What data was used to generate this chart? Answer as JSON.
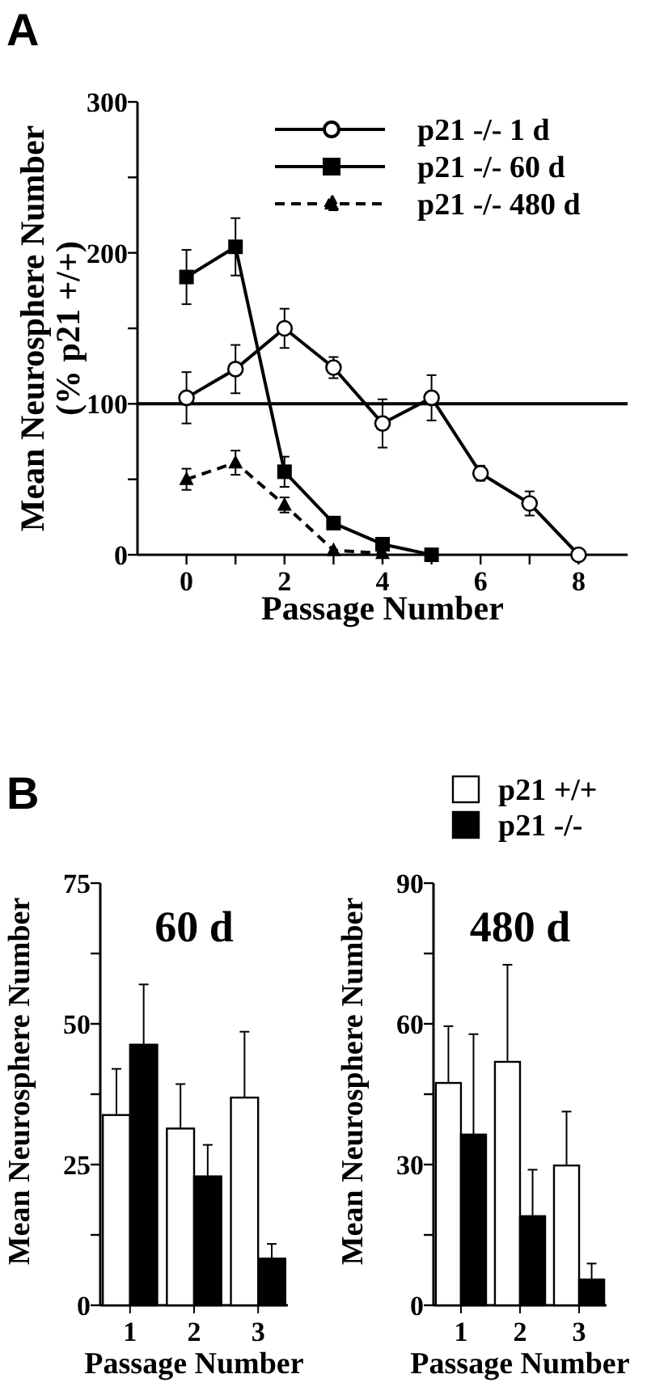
{
  "chart_data": [
    {
      "type": "line",
      "annotations": [
        "A"
      ],
      "xlabel": "Passage Number",
      "ylabel": "Mean Neurosphere Number\n(% p21 +/+)",
      "xlim": [
        -1,
        9
      ],
      "xticks": [
        0,
        {
          "value": 1,
          "label": null
        },
        2,
        {
          "value": 3,
          "label": null
        },
        4,
        {
          "value": 5,
          "label": null
        },
        6,
        {
          "value": 7,
          "label": null
        },
        8
      ],
      "ylim": [
        0,
        300
      ],
      "yticks": [
        0,
        {
          "value": 50,
          "label": null
        },
        100,
        {
          "value": 150,
          "label": null
        },
        200,
        {
          "value": 250,
          "label": null
        },
        300
      ],
      "legend": "top right",
      "grid": false,
      "ref_lines": [
        {
          "axis": "y",
          "value": 100,
          "color": "#000000"
        }
      ],
      "series": [
        {
          "name": "p21 -/- 1 d",
          "color": "#000000",
          "marker": "circle",
          "line_style": "solid",
          "x": [
            0,
            1,
            2,
            3,
            4,
            5,
            6,
            7,
            8
          ],
          "values": [
            104,
            123,
            150,
            124,
            87,
            104,
            54,
            34,
            0
          ],
          "errors": [
            17,
            16,
            13,
            7,
            16,
            15,
            5,
            8,
            null
          ]
        },
        {
          "name": "p21 -/- 60 d",
          "color": "#000000",
          "marker": "square",
          "line_style": "solid",
          "x": [
            0,
            1,
            2,
            3,
            4,
            5
          ],
          "values": [
            184,
            204,
            55,
            21,
            7,
            0
          ],
          "errors": [
            18,
            19,
            10,
            null,
            null,
            null
          ]
        },
        {
          "name": "p21 -/- 480 d",
          "color": "#000000",
          "marker": "triangle",
          "line_style": "dashed",
          "x": [
            0,
            1,
            2,
            3,
            4
          ],
          "values": [
            50,
            61,
            33,
            3,
            1
          ],
          "errors": [
            7,
            8,
            5,
            null,
            null
          ]
        }
      ]
    },
    {
      "type": "bar",
      "annotations": [
        "B"
      ],
      "title": "60 d",
      "xlabel": "Passage Number",
      "ylabel": "Mean Neurosphere Number",
      "categories": [
        "1",
        "2",
        "3"
      ],
      "ylim": [
        0,
        75
      ],
      "yticks": [
        0,
        {
          "value": 12.5,
          "label": null
        },
        25,
        {
          "value": 37.5,
          "label": null
        },
        50,
        {
          "value": 62.5,
          "label": null
        },
        75
      ],
      "legend": false,
      "series": [
        {
          "color": "#ffffff",
          "values": [
            33.8,
            31.4,
            36.9
          ],
          "errors": [
            [
              33.8,
              42
            ],
            [
              31.4,
              39.3
            ],
            [
              36.9,
              48.6
            ]
          ]
        },
        {
          "color": "#000000",
          "values": [
            46.3,
            22.9,
            8.3
          ],
          "errors": [
            [
              46.3,
              57
            ],
            [
              22.9,
              28.5
            ],
            [
              8.3,
              10.9
            ]
          ]
        }
      ]
    },
    {
      "type": "bar",
      "title": "480 d",
      "xlabel": "Passage Number",
      "ylabel": "Mean Neurosphere Number",
      "categories": [
        "1",
        "2",
        "3"
      ],
      "ylim": [
        0,
        90
      ],
      "yticks": [
        0,
        {
          "value": 15,
          "label": null
        },
        30,
        {
          "value": 45,
          "label": null
        },
        60,
        {
          "value": 75,
          "label": null
        },
        90
      ],
      "legend": "top",
      "series": [
        {
          "name": "p21 +/+",
          "color": "#ffffff",
          "values": [
            47.4,
            51.9,
            29.8
          ],
          "errors": [
            [
              47.4,
              59.5
            ],
            [
              51.9,
              72.6
            ],
            [
              29.8,
              41.3
            ]
          ]
        },
        {
          "name": "p21 -/-",
          "color": "#000000",
          "values": [
            36.4,
            19,
            5.5
          ],
          "errors": [
            [
              36.4,
              57.8
            ],
            [
              19,
              28.9
            ],
            [
              5.5,
              8.9
            ]
          ]
        }
      ]
    }
  ]
}
